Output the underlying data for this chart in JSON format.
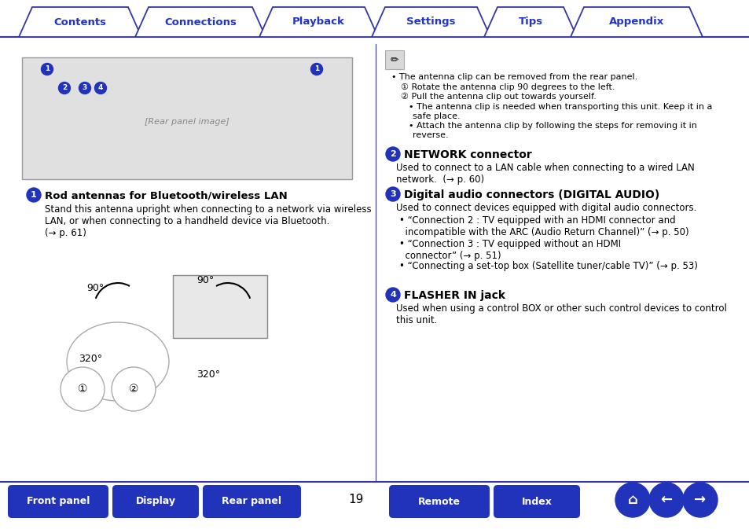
{
  "bg_color": "#ffffff",
  "tab_border_color": "#3535a8",
  "tab_text_color": "#2233cc",
  "tabs": [
    "Contents",
    "Connections",
    "Playback",
    "Settings",
    "Tips",
    "Appendix"
  ],
  "bottom_buttons": [
    "Front panel",
    "Display",
    "Rear panel",
    "Remote",
    "Index"
  ],
  "btn_color": "#2233bb",
  "page_number": "19",
  "divider_color": "#3535a8",
  "arrow_right": "→",
  "bullet": "•",
  "lquote": "“",
  "rquote": "”",
  "circ1": "①",
  "circ2": "②"
}
